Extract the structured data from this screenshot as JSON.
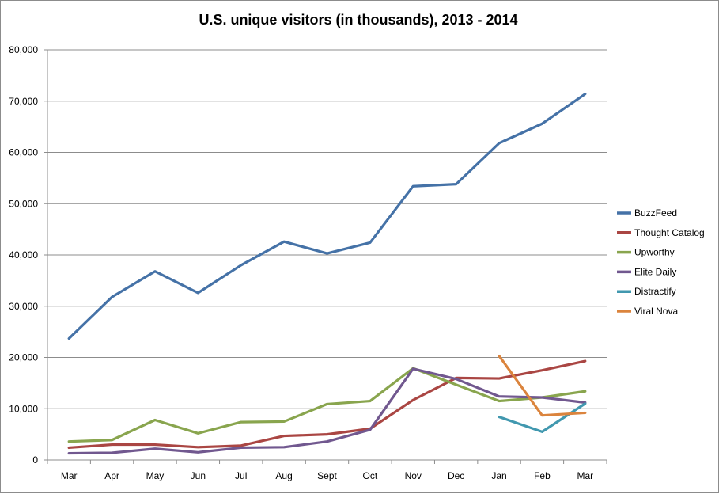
{
  "chart_data": {
    "type": "line",
    "title": "U.S. unique visitors (in thousands), 2013 - 2014",
    "xlabel": "",
    "ylabel": "",
    "ylim": [
      0,
      80000
    ],
    "yticks": [
      0,
      10000,
      20000,
      30000,
      40000,
      50000,
      60000,
      70000,
      80000
    ],
    "ytick_labels": [
      "0",
      "10,000",
      "20,000",
      "30,000",
      "40,000",
      "50,000",
      "60,000",
      "70,000",
      "80,000"
    ],
    "categories": [
      "Mar",
      "Apr",
      "May",
      "Jun",
      "Jul",
      "Aug",
      "Sept",
      "Oct",
      "Nov",
      "Dec",
      "Jan",
      "Feb",
      "Mar"
    ],
    "grid": true,
    "legend_position": "right",
    "series": [
      {
        "name": "BuzzFeed",
        "color": "#4572a7",
        "values": [
          23700,
          31800,
          36800,
          32600,
          38000,
          42600,
          40300,
          42400,
          53400,
          53800,
          61800,
          65600,
          71400
        ]
      },
      {
        "name": "Thought Catalog",
        "color": "#aa4643",
        "values": [
          2400,
          3000,
          3000,
          2500,
          2800,
          4700,
          5000,
          6100,
          11700,
          16000,
          15900,
          17500,
          19300
        ]
      },
      {
        "name": "Upworthy",
        "color": "#89a54e",
        "values": [
          3600,
          3900,
          7800,
          5200,
          7400,
          7500,
          10900,
          11500,
          17900,
          14700,
          11500,
          12200,
          13400
        ]
      },
      {
        "name": "Elite Daily",
        "color": "#71588f",
        "values": [
          1300,
          1400,
          2200,
          1500,
          2400,
          2500,
          3600,
          5900,
          17800,
          15800,
          12400,
          12200,
          11200
        ]
      },
      {
        "name": "Distractify",
        "color": "#4198af",
        "values": [
          null,
          null,
          null,
          null,
          null,
          null,
          null,
          null,
          null,
          null,
          8400,
          5500,
          11000
        ]
      },
      {
        "name": "Viral Nova",
        "color": "#db843d",
        "values": [
          null,
          null,
          null,
          null,
          null,
          null,
          null,
          null,
          null,
          null,
          20300,
          8700,
          9200
        ]
      }
    ]
  }
}
